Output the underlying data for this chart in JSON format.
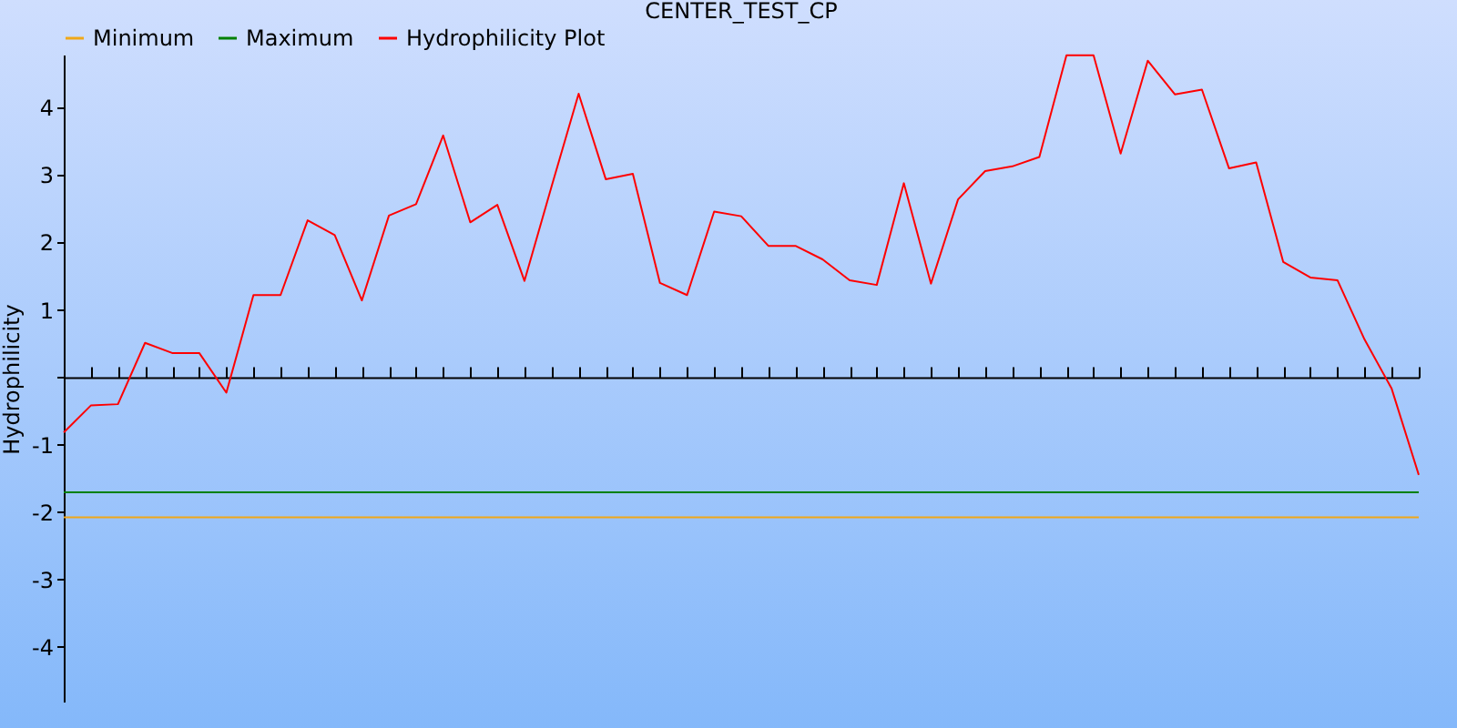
{
  "chart_data": {
    "type": "line",
    "title": "CENTER_TEST_CP",
    "ylabel": "Hydrophilicity",
    "categories": [
      null,
      null,
      null,
      null,
      null,
      null,
      null,
      null,
      null,
      null,
      null,
      null,
      null,
      null,
      null,
      null,
      null,
      null,
      null,
      null,
      null,
      null,
      null,
      null,
      null,
      null,
      null,
      null,
      null,
      null,
      null,
      null,
      null,
      null,
      null,
      null,
      null,
      null,
      null,
      null,
      null,
      null,
      null,
      null,
      null,
      null,
      null,
      null,
      null,
      null,
      null
    ],
    "series": [
      {
        "name": "Minimum",
        "color": "#f0a818",
        "values": [
          -2.08,
          -2.08,
          -2.08,
          -2.08,
          -2.08,
          -2.08,
          -2.08,
          -2.08,
          -2.08,
          -2.08,
          -2.08,
          -2.08,
          -2.08,
          -2.08,
          -2.08,
          -2.08,
          -2.08,
          -2.08,
          -2.08,
          -2.08,
          -2.08,
          -2.08,
          -2.08,
          -2.08,
          -2.08,
          -2.08,
          -2.08,
          -2.08,
          -2.08,
          -2.08,
          -2.08,
          -2.08,
          -2.08,
          -2.08,
          -2.08,
          -2.08,
          -2.08,
          -2.08,
          -2.08,
          -2.08,
          -2.08,
          -2.08,
          -2.08,
          -2.08,
          -2.08,
          -2.08,
          -2.08,
          -2.08,
          -2.08,
          -2.08,
          -2.08
        ]
      },
      {
        "name": "Maximum",
        "color": "#008000",
        "values": [
          -1.71,
          -1.71,
          -1.71,
          -1.71,
          -1.71,
          -1.71,
          -1.71,
          -1.71,
          -1.71,
          -1.71,
          -1.71,
          -1.71,
          -1.71,
          -1.71,
          -1.71,
          -1.71,
          -1.71,
          -1.71,
          -1.71,
          -1.71,
          -1.71,
          -1.71,
          -1.71,
          -1.71,
          -1.71,
          -1.71,
          -1.71,
          -1.71,
          -1.71,
          -1.71,
          -1.71,
          -1.71,
          -1.71,
          -1.71,
          -1.71,
          -1.71,
          -1.71,
          -1.71,
          -1.71,
          -1.71,
          -1.71,
          -1.71,
          -1.71,
          -1.71,
          -1.71,
          -1.71,
          -1.71,
          -1.71,
          -1.71,
          -1.71,
          -1.71
        ]
      },
      {
        "name": "Hydrophilicity Plot",
        "color": "#ff0000",
        "values": [
          -0.82,
          -0.42,
          -0.4,
          0.51,
          0.36,
          0.36,
          -0.23,
          1.22,
          1.22,
          2.33,
          2.11,
          1.14,
          2.4,
          2.57,
          3.59,
          2.3,
          2.56,
          1.43,
          2.83,
          4.21,
          2.94,
          3.02,
          1.4,
          1.22,
          2.46,
          2.39,
          1.95,
          1.95,
          1.75,
          1.44,
          1.37,
          2.88,
          1.39,
          2.64,
          3.06,
          3.13,
          3.27,
          4.78,
          4.78,
          3.32,
          4.7,
          4.2,
          4.27,
          3.1,
          3.19,
          1.71,
          1.48,
          1.44,
          0.56,
          -0.17,
          -1.45
        ]
      }
    ],
    "ylim": [
      -4.83,
      4.79
    ],
    "yticks": [
      -4,
      -3,
      -2,
      -1,
      {
        "value": 0,
        "label": null
      },
      1,
      2,
      3,
      4
    ],
    "legend": "top",
    "tick_labels": "y"
  }
}
